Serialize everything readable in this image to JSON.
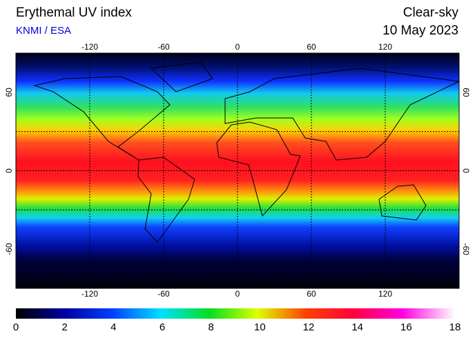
{
  "header": {
    "title": "Erythemal UV index",
    "source": "KNMI / ESA",
    "mode": "Clear-sky",
    "date": "10 May 2023"
  },
  "map": {
    "lon_ticks": [
      -120,
      -60,
      0,
      60,
      120
    ],
    "lat_ticks": [
      60,
      0,
      -60
    ]
  },
  "colorbar": {
    "ticks": [
      0,
      2,
      4,
      6,
      8,
      10,
      12,
      14,
      16,
      18
    ]
  }
}
